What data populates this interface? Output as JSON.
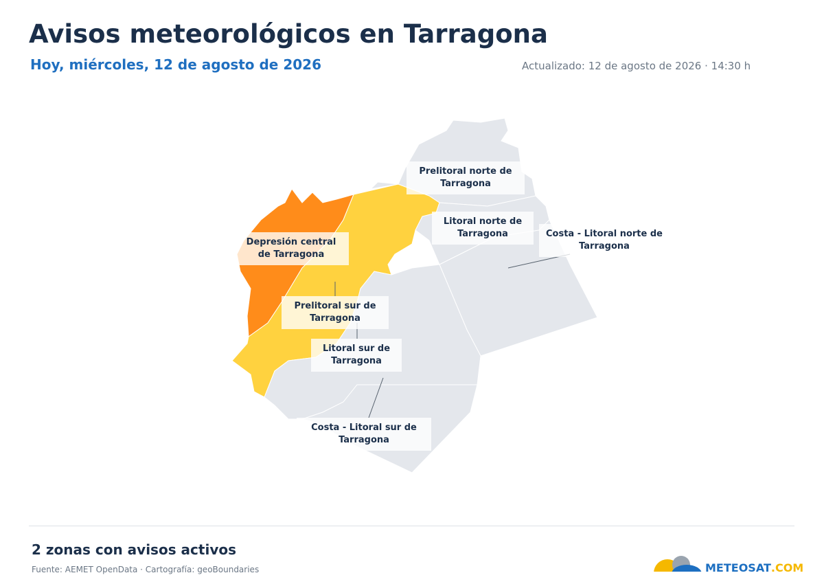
{
  "header": {
    "title": "Avisos meteorológicos en Tarragona",
    "subtitle": "Hoy, miércoles, 12 de agosto de 2026",
    "updated": "Actualizado: 12 de agosto de 2026 · 14:30 h"
  },
  "zones": [
    {
      "label": "Depresión central de Tarragona",
      "color": "#ff8c1a"
    },
    {
      "label": "Prelitoral sur de Tarragona",
      "color": "#ffd23f"
    },
    {
      "label": "Prelitoral norte de Tarragona",
      "color": "#e4e7ec"
    },
    {
      "label": "Litoral norte de Tarragona",
      "color": "#e4e7ec"
    },
    {
      "label": "Costa - Litoral norte de Tarragona",
      "color": "#e4e7ec"
    },
    {
      "label": "Litoral sur de Tarragona",
      "color": "#e4e7ec"
    },
    {
      "label": "Costa - Litoral sur de Tarragona",
      "color": "#e4e7ec"
    }
  ],
  "footer": {
    "summary": "2 zonas con avisos activos",
    "source": "Fuente: AEMET OpenData · Cartografía: geoBoundaries"
  },
  "logo": {
    "name": "METEOSAT",
    "suffix": ".COM"
  }
}
